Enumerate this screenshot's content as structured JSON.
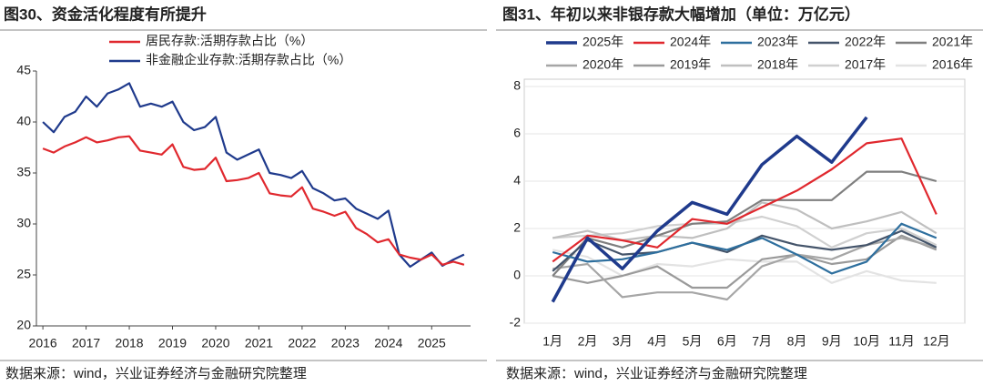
{
  "chart_data": [
    {
      "type": "line",
      "title": "图30、资金活化程度有所提升",
      "source": "数据来源：wind，兴业证券经济与金融研究院整理",
      "legend": "top",
      "x": [
        2016.0,
        2016.25,
        2016.5,
        2016.75,
        2017.0,
        2017.25,
        2017.5,
        2017.75,
        2018.0,
        2018.25,
        2018.5,
        2018.75,
        2019.0,
        2019.25,
        2019.5,
        2019.75,
        2020.0,
        2020.25,
        2020.5,
        2020.75,
        2021.0,
        2021.25,
        2021.5,
        2021.75,
        2022.0,
        2022.25,
        2022.5,
        2022.75,
        2023.0,
        2023.25,
        2023.5,
        2023.75,
        2024.0,
        2024.25,
        2024.5,
        2024.75,
        2025.0,
        2025.25,
        2025.5,
        2025.75
      ],
      "series": [
        {
          "name": "居民存款:活期存款占比（%）",
          "color": "#e0282e",
          "values": [
            37.4,
            37.0,
            37.6,
            38.0,
            38.5,
            38.0,
            38.2,
            38.5,
            38.6,
            37.2,
            37.0,
            36.8,
            37.8,
            35.6,
            35.3,
            35.4,
            36.5,
            34.2,
            34.3,
            34.5,
            35.0,
            33.0,
            32.8,
            32.7,
            33.6,
            31.5,
            31.2,
            30.8,
            31.2,
            29.6,
            29.0,
            28.2,
            28.5,
            27.0,
            26.7,
            26.5,
            27.0,
            26.0,
            26.3,
            26.0
          ]
        },
        {
          "name": "非金融企业存款:活期存款占比（%）",
          "color": "#1f3a8c",
          "values": [
            40.0,
            39.0,
            40.5,
            41.0,
            42.5,
            41.5,
            42.8,
            43.2,
            43.8,
            41.5,
            41.8,
            41.5,
            42.0,
            40.0,
            39.2,
            39.5,
            40.5,
            37.0,
            36.3,
            36.8,
            37.3,
            35.0,
            34.8,
            34.5,
            35.2,
            33.5,
            33.0,
            32.3,
            32.5,
            31.5,
            31.0,
            30.5,
            31.3,
            27.0,
            25.8,
            26.5,
            27.2,
            25.9,
            26.5,
            27.0
          ]
        }
      ],
      "xlim": [
        2015.85,
        2025.9
      ],
      "xticks": [
        2016,
        2017,
        2018,
        2019,
        2020,
        2021,
        2022,
        2023,
        2024,
        2025
      ],
      "ylim": [
        20,
        45
      ],
      "yticks": [
        20,
        25,
        30,
        35,
        40,
        45
      ]
    },
    {
      "type": "line",
      "title": "图31、年初以来非银存款大幅增加（单位：万亿元）",
      "source": "数据来源：wind，兴业证券经济与金融研究院整理",
      "legend": "top",
      "categories": [
        "1月",
        "2月",
        "3月",
        "4月",
        "5月",
        "6月",
        "7月",
        "8月",
        "9月",
        "10月",
        "11月",
        "12月"
      ],
      "series": [
        {
          "name": "2025年",
          "color": "#1f3a8c",
          "values": [
            -1.1,
            1.6,
            0.3,
            1.9,
            3.1,
            2.6,
            4.7,
            5.9,
            4.8,
            6.7,
            null,
            null
          ]
        },
        {
          "name": "2024年",
          "color": "#e0282e",
          "values": [
            0.6,
            1.7,
            1.5,
            1.2,
            2.4,
            2.2,
            2.9,
            3.6,
            4.5,
            5.6,
            5.8,
            2.6
          ]
        },
        {
          "name": "2023年",
          "color": "#2e6f9e",
          "values": [
            1.0,
            0.6,
            0.7,
            1.0,
            1.4,
            1.1,
            1.6,
            0.9,
            0.1,
            0.6,
            2.2,
            1.6
          ]
        },
        {
          "name": "2022年",
          "color": "#44546a",
          "values": [
            0.2,
            1.5,
            0.9,
            1.0,
            1.4,
            1.0,
            1.7,
            1.3,
            1.1,
            1.3,
            1.9,
            1.2
          ]
        },
        {
          "name": "2021年",
          "color": "#7f7f7f",
          "values": [
            0.0,
            1.6,
            1.2,
            1.7,
            2.2,
            2.3,
            3.2,
            3.2,
            3.2,
            4.4,
            4.4,
            4.0
          ]
        },
        {
          "name": "2020年",
          "color": "#a6a6a6",
          "values": [
            0.3,
            0.5,
            -0.9,
            -0.7,
            -0.7,
            -1.0,
            0.4,
            0.9,
            0.7,
            1.3,
            1.6,
            1.2
          ]
        },
        {
          "name": "2019年",
          "color": "#9a9a9a",
          "values": [
            0.0,
            -0.3,
            0.0,
            0.4,
            -0.5,
            -0.5,
            0.7,
            0.9,
            0.5,
            0.7,
            1.7,
            1.1
          ]
        },
        {
          "name": "2018年",
          "color": "#bfbfbf",
          "values": [
            1.6,
            1.9,
            1.5,
            1.7,
            1.6,
            2.0,
            3.1,
            2.8,
            2.0,
            2.3,
            2.7,
            1.8
          ]
        },
        {
          "name": "2017年",
          "color": "#d0d0d0",
          "values": [
            1.6,
            1.7,
            1.8,
            2.1,
            2.2,
            2.2,
            2.5,
            2.1,
            1.2,
            1.8,
            2.0,
            1.3
          ]
        },
        {
          "name": "2016年",
          "color": "#e3e3e3",
          "values": [
            1.1,
            0.8,
            0.0,
            0.5,
            0.4,
            0.7,
            0.6,
            0.6,
            -0.3,
            0.2,
            -0.2,
            -0.3
          ]
        }
      ],
      "ylim": [
        -2,
        8
      ],
      "yticks": [
        -2,
        0,
        2,
        4,
        6,
        8
      ]
    }
  ]
}
